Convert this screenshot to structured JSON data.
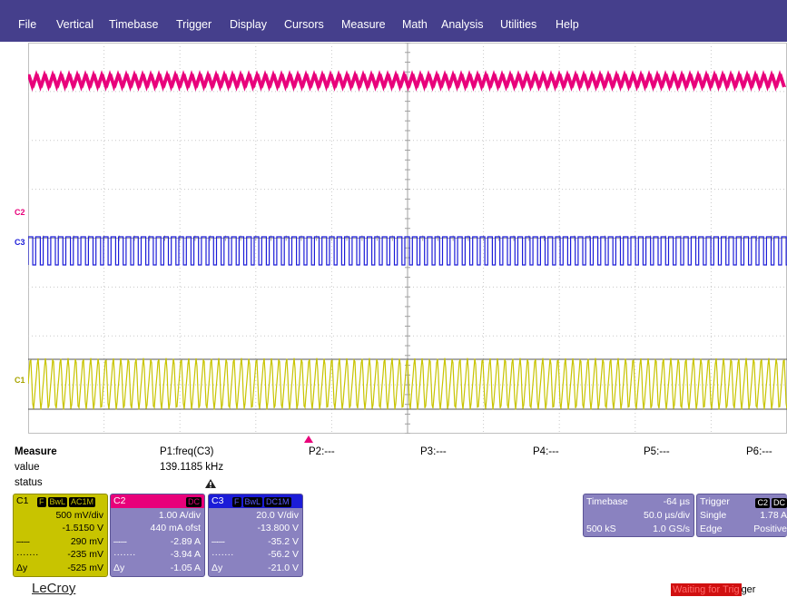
{
  "menu": [
    "File",
    "Vertical",
    "Timebase",
    "Trigger",
    "Display",
    "Cursors",
    "Measure",
    "Math",
    "Analysis",
    "Utilities",
    "Help"
  ],
  "colors": {
    "menu_bg": "#453f8c",
    "c1": "#c8c400",
    "c2": "#e8007a",
    "c3": "#1c1cd8",
    "panel": "#8a82c0",
    "panel_border": "#5b5496"
  },
  "traces": {
    "c2_label": "C2",
    "c3_label": "C3",
    "c1_label": "C1"
  },
  "measure": {
    "title": "Measure",
    "row_value": "value",
    "row_status": "status",
    "params": [
      "P1:freq(C3)",
      "P2:---",
      "P3:---",
      "P4:---",
      "P5:---",
      "P6:---"
    ],
    "p1_value": "139.1185 kHz",
    "p1_status_icon": "warning-icon"
  },
  "channels": [
    {
      "name": "C1",
      "tags": [
        "F",
        "BwL",
        "AC1M"
      ],
      "scale": "500 mV/div",
      "offset": "-1.5150 V",
      "cursor1": "290 mV",
      "cursor2": "-235 mV",
      "dy_label": "Δy",
      "dy": "-525 mV"
    },
    {
      "name": "C2",
      "tags": [
        "DC"
      ],
      "scale": "1.00 A/div",
      "offset": "440 mA ofst",
      "cursor1": "-2.89 A",
      "cursor2": "-3.94 A",
      "dy_label": "Δy",
      "dy": "-1.05 A"
    },
    {
      "name": "C3",
      "tags": [
        "F",
        "BwL",
        "DC1M"
      ],
      "scale": "20.0 V/div",
      "offset": "-13.800 V",
      "cursor1": "-35.2 V",
      "cursor2": "-56.2 V",
      "dy_label": "Δy",
      "dy": "-21.0 V"
    }
  ],
  "timebase": {
    "label": "Timebase",
    "delay": "-64 µs",
    "per_div": "50.0 µs/div",
    "samples": "500 kS",
    "rate": "1.0 GS/s"
  },
  "trigger": {
    "label": "Trigger",
    "source_tag": "C2",
    "coupling_tag": "DC",
    "level": "1.78 A",
    "mode": "Single",
    "type": "Edge",
    "slope": "Positive"
  },
  "brand": "LeCroy",
  "status": {
    "text_highlight": "Waiting for Trig",
    "text_rest": "ger"
  }
}
